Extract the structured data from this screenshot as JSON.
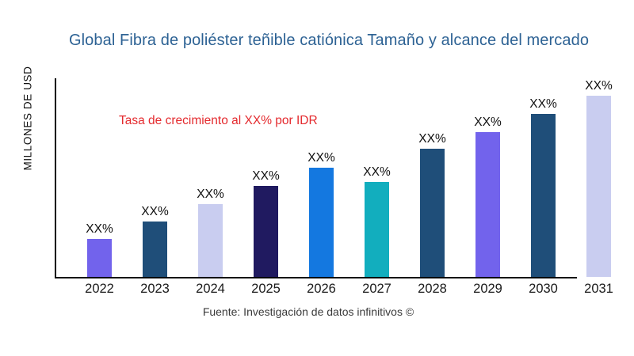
{
  "header": {
    "title": "Global Fibra de poliéster teñible catiónica Tamaño y alcance del mercado",
    "title_color": "#2d6294"
  },
  "annotation": {
    "text": "Tasa de crecimiento al XX% por IDR",
    "color": "#e42a2e"
  },
  "footer": {
    "source": "Fuente: Investigación de datos infinitivos ©"
  },
  "chart_data": {
    "type": "bar",
    "title": "Global Fibra de poliéster teñible catiónica Tamaño y alcance del mercado",
    "xlabel": "",
    "ylabel": "MILLONES DE USD",
    "categories": [
      "2022",
      "2023",
      "2024",
      "2025",
      "2026",
      "2027",
      "2028",
      "2029",
      "2030",
      "2031"
    ],
    "values": [
      48,
      70,
      92,
      115,
      138,
      120,
      162,
      183,
      206,
      229
    ],
    "values_unit": "relative height (y-axis has no numeric ticks)",
    "bar_label": "XX%",
    "bar_colors": [
      "#7263ec",
      "#1f4e79",
      "#c9cdf0",
      "#201a60",
      "#1478e0",
      "#12aebe",
      "#1f4e79",
      "#7263ec",
      "#1f4e79",
      "#c9cdf0"
    ],
    "annotation": "Tasa de crecimiento al XX% por IDR",
    "axis_color": "#000000",
    "grid": false,
    "legend": false
  }
}
